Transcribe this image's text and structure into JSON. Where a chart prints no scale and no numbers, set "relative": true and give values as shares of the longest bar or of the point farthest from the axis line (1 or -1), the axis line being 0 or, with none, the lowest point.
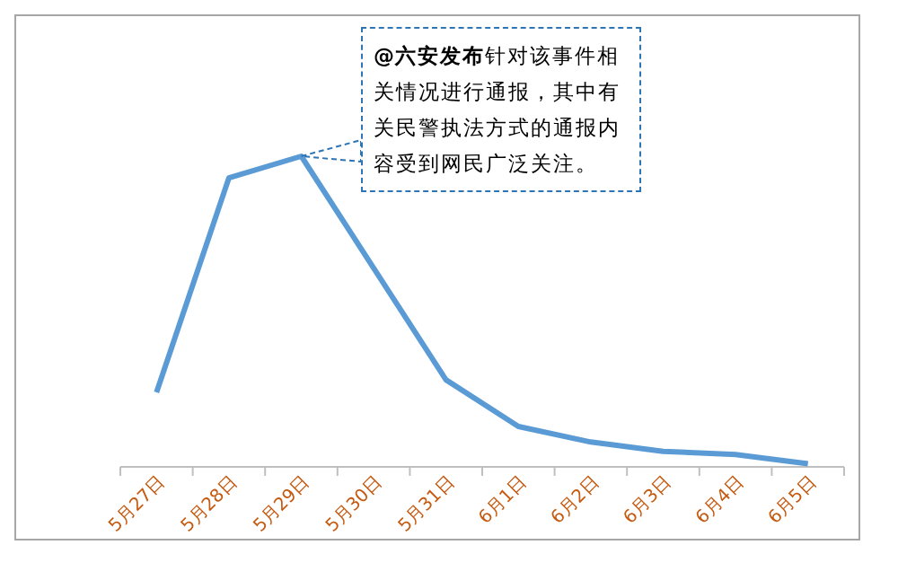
{
  "chart_data": {
    "type": "line",
    "relative": true,
    "categories": [
      "5月27日",
      "5月28日",
      "5月29日",
      "5月30日",
      "5月31日",
      "6月1日",
      "6月2日",
      "6月3日",
      "6月4日",
      "6月5日"
    ],
    "series": [
      {
        "color": "#5b9bd5",
        "values": [
          0.24,
          0.93,
          1,
          0.64,
          0.28,
          0.13,
          0.08,
          0.05,
          0.04,
          0.01
        ]
      }
    ],
    "annotations": [
      {
        "text": "**@六安发布**针对该事件相关情况进行通报，其中有关民警执法方式的通报内容受到网民广泛关注。",
        "x": "5月29日",
        "y": 1
      }
    ],
    "marker": "none",
    "line_style": "solid"
  }
}
